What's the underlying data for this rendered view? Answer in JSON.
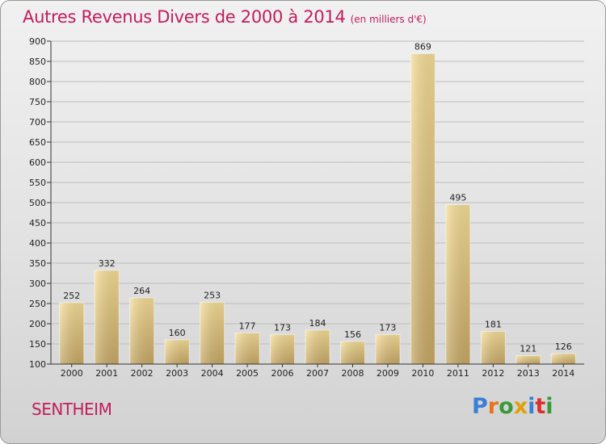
{
  "title": "Autres Revenus Divers de 2000 à 2014",
  "subtitle": "(en milliers d'€)",
  "commune": "SENTHEIM",
  "logo": {
    "letters": [
      "P",
      "r",
      "o",
      "x",
      "i",
      "t",
      "i"
    ],
    "colors": [
      "#3a7fd5",
      "#e8731a",
      "#3a9a3a",
      "#e0a000",
      "#3a7fd5",
      "#d9302c",
      "#3a9a3a"
    ]
  },
  "colors": {
    "accent": "#c21e5a",
    "bar_light": "#f5dd96",
    "bar_dark": "#c7a865",
    "axis": "#333333",
    "grid": "#bdbdbd"
  },
  "chart_data": {
    "type": "bar",
    "categories": [
      "2000",
      "2001",
      "2002",
      "2003",
      "2004",
      "2005",
      "2006",
      "2007",
      "2008",
      "2009",
      "2010",
      "2011",
      "2012",
      "2013",
      "2014"
    ],
    "values": [
      252,
      332,
      264,
      160,
      253,
      177,
      173,
      184,
      156,
      173,
      869,
      495,
      181,
      121,
      126
    ],
    "ylim": [
      100,
      900
    ],
    "yticks": [
      100,
      150,
      200,
      250,
      300,
      350,
      400,
      450,
      500,
      550,
      600,
      650,
      700,
      750,
      800,
      850,
      900
    ],
    "grid": "horizontal",
    "xlabel": "",
    "ylabel": ""
  }
}
